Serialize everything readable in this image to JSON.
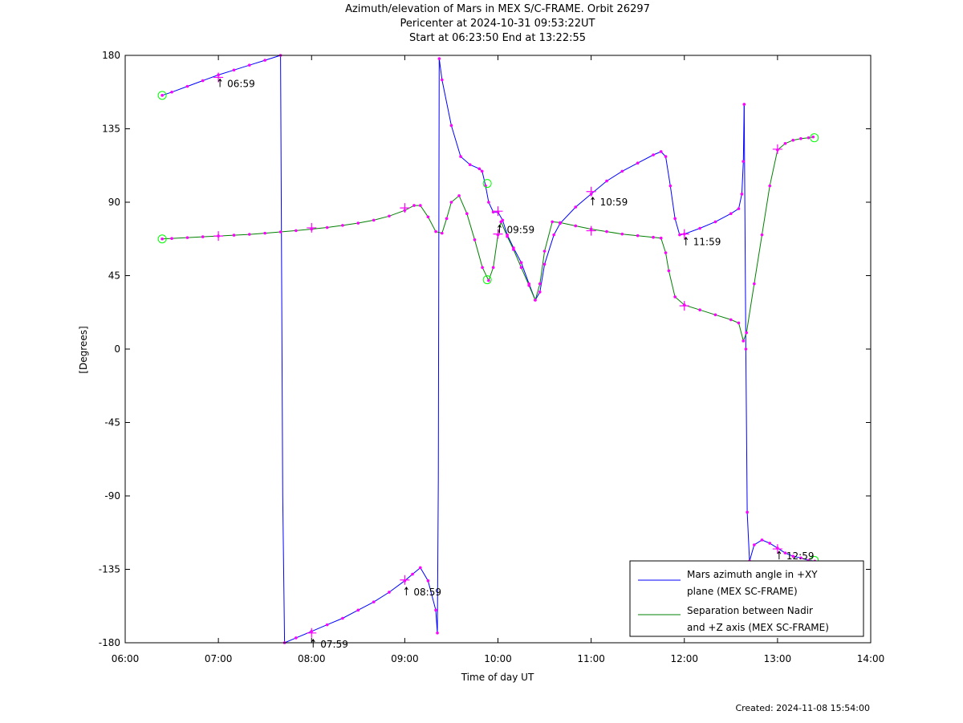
{
  "header": {
    "title": "Azimuth/elevation of Mars in MEX S/C-FRAME.  Orbit 26297",
    "pericenter": "Pericenter at 2024-10-31 09:53:22UT",
    "start_end": "Start at 06:23:50 End at 13:22:55"
  },
  "footer": {
    "created": "Created: 2024-11-08 15:54:00"
  },
  "chart_data": {
    "type": "line",
    "title": "Azimuth/elevation of Mars in MEX S/C-FRAME.  Orbit 26297",
    "xlabel": "Time of day UT",
    "ylabel": "[Degrees]",
    "xlim": [
      6,
      14
    ],
    "ylim": [
      -180,
      180
    ],
    "xticks": [
      6,
      7,
      8,
      9,
      10,
      11,
      12,
      13,
      14
    ],
    "xtick_labels": [
      "06:00",
      "07:00",
      "08:00",
      "09:00",
      "10:00",
      "11:00",
      "12:00",
      "13:00",
      "14:00"
    ],
    "yticks": [
      180,
      135,
      90,
      45,
      0,
      -45,
      -90,
      -135,
      -180
    ],
    "ytick_labels": [
      "180",
      "135",
      "90",
      "45",
      "0",
      "-45",
      "-90",
      "-135",
      "-180"
    ],
    "legend_position": "bottom-right",
    "colors": {
      "azimuth": "#0000ff",
      "separation": "#008000",
      "markers": "#ff00ff",
      "endpoints": "#00ff00"
    },
    "series": [
      {
        "name": "Mars azimuth angle in +XY plane (MEX SC-FRAME)",
        "legend_lines": [
          "Mars azimuth angle in +XY",
          "plane (MEX SC-FRAME)"
        ],
        "color": "#0000ff",
        "segments": [
          [
            [
              6.397,
              155.5
            ],
            [
              6.5,
              157.5
            ],
            [
              6.667,
              161
            ],
            [
              6.833,
              164.5
            ],
            [
              7.0,
              168
            ],
            [
              7.167,
              171
            ],
            [
              7.333,
              174
            ],
            [
              7.5,
              177
            ],
            [
              7.667,
              180
            ]
          ],
          [
            [
              7.667,
              180
            ],
            [
              7.69,
              -90
            ],
            [
              7.71,
              -180
            ]
          ],
          [
            [
              7.71,
              -180
            ],
            [
              7.833,
              -177
            ],
            [
              8.0,
              -173
            ],
            [
              8.167,
              -169
            ],
            [
              8.333,
              -165
            ],
            [
              8.5,
              -160
            ],
            [
              8.667,
              -155
            ],
            [
              8.833,
              -149
            ],
            [
              9.0,
              -142
            ],
            [
              9.083,
              -138
            ],
            [
              9.167,
              -134
            ],
            [
              9.25,
              -142
            ],
            [
              9.333,
              -160
            ],
            [
              9.35,
              -174
            ]
          ],
          [
            [
              9.35,
              -174
            ],
            [
              9.36,
              -80
            ],
            [
              9.37,
              178
            ]
          ],
          [
            [
              9.37,
              178
            ],
            [
              9.4,
              165
            ],
            [
              9.5,
              137
            ],
            [
              9.6,
              118
            ],
            [
              9.7,
              113
            ],
            [
              9.8,
              110.5
            ],
            [
              9.83,
              109
            ],
            [
              9.867,
              100
            ],
            [
              9.9,
              90
            ],
            [
              9.95,
              84
            ],
            [
              10.0,
              84
            ],
            [
              10.05,
              79
            ],
            [
              10.1,
              70
            ],
            [
              10.167,
              62
            ],
            [
              10.25,
              53
            ],
            [
              10.333,
              40
            ],
            [
              10.4,
              30
            ],
            [
              10.45,
              35
            ],
            [
              10.5,
              52
            ],
            [
              10.6,
              70
            ],
            [
              10.667,
              77
            ],
            [
              10.833,
              87
            ],
            [
              11.0,
              95
            ],
            [
              11.167,
              103
            ],
            [
              11.333,
              109
            ],
            [
              11.5,
              114
            ],
            [
              11.667,
              119
            ],
            [
              11.75,
              121
            ],
            [
              11.8,
              118
            ],
            [
              11.85,
              100
            ],
            [
              11.9,
              80
            ],
            [
              11.95,
              70
            ],
            [
              12.0,
              70.5
            ],
            [
              12.167,
              74
            ],
            [
              12.333,
              78
            ],
            [
              12.5,
              83
            ],
            [
              12.583,
              86
            ],
            [
              12.617,
              95
            ],
            [
              12.633,
              115
            ],
            [
              12.642,
              150
            ]
          ],
          [
            [
              12.642,
              150
            ],
            [
              12.66,
              0
            ],
            [
              12.675,
              -100
            ],
            [
              12.7,
              -130
            ]
          ],
          [
            [
              12.7,
              -130
            ],
            [
              12.75,
              -120
            ],
            [
              12.833,
              -117
            ],
            [
              12.917,
              -119
            ],
            [
              13.0,
              -122
            ],
            [
              13.083,
              -125
            ],
            [
              13.167,
              -127
            ],
            [
              13.25,
              -128
            ],
            [
              13.333,
              -129.5
            ],
            [
              13.4,
              -130
            ]
          ]
        ]
      },
      {
        "name": "Separation between Nadir and +Z axis (MEX SC-FRAME)",
        "legend_lines": [
          "Separation between Nadir",
          "and +Z axis (MEX SC-FRAME)"
        ],
        "color": "#008000",
        "segments": [
          [
            [
              6.397,
              67.5
            ],
            [
              6.5,
              67.8
            ],
            [
              6.667,
              68.3
            ],
            [
              6.833,
              68.8
            ],
            [
              7.0,
              69.3
            ],
            [
              7.167,
              69.8
            ],
            [
              7.333,
              70.3
            ],
            [
              7.5,
              71
            ],
            [
              7.667,
              71.8
            ],
            [
              7.833,
              72.6
            ],
            [
              8.0,
              73.5
            ],
            [
              8.167,
              74.5
            ],
            [
              8.333,
              75.8
            ],
            [
              8.5,
              77.2
            ],
            [
              8.667,
              79
            ],
            [
              8.833,
              81.5
            ],
            [
              9.0,
              85
            ],
            [
              9.1,
              88
            ],
            [
              9.167,
              88
            ],
            [
              9.25,
              81
            ],
            [
              9.333,
              72
            ],
            [
              9.4,
              71
            ],
            [
              9.45,
              80
            ],
            [
              9.5,
              90
            ],
            [
              9.583,
              94
            ],
            [
              9.667,
              83
            ],
            [
              9.75,
              67
            ],
            [
              9.833,
              50
            ],
            [
              9.9,
              42
            ],
            [
              9.95,
              50
            ],
            [
              10.0,
              70
            ],
            [
              10.033,
              78
            ],
            [
              10.1,
              69
            ],
            [
              10.167,
              61
            ],
            [
              10.25,
              50
            ],
            [
              10.333,
              39
            ],
            [
              10.4,
              30
            ],
            [
              10.45,
              40
            ],
            [
              10.5,
              60
            ],
            [
              10.583,
              78
            ],
            [
              10.667,
              77.5
            ],
            [
              10.833,
              75.5
            ],
            [
              11.0,
              73.5
            ],
            [
              11.167,
              72
            ],
            [
              11.333,
              70.5
            ],
            [
              11.5,
              69.5
            ],
            [
              11.667,
              68.5
            ],
            [
              11.75,
              68
            ],
            [
              11.8,
              59
            ],
            [
              11.833,
              48
            ],
            [
              11.9,
              32
            ],
            [
              12.0,
              27
            ],
            [
              12.167,
              24
            ],
            [
              12.333,
              21
            ],
            [
              12.5,
              18
            ],
            [
              12.583,
              16
            ],
            [
              12.633,
              5
            ],
            [
              12.667,
              10
            ],
            [
              12.75,
              40
            ],
            [
              12.833,
              70
            ],
            [
              12.917,
              100
            ],
            [
              13.0,
              122
            ],
            [
              13.083,
              126
            ],
            [
              13.167,
              128
            ],
            [
              13.25,
              129
            ],
            [
              13.333,
              129.5
            ],
            [
              13.382,
              130
            ]
          ]
        ]
      }
    ],
    "hourly_labels": [
      {
        "label": "06:59",
        "x": 7.0,
        "y": 165.5
      },
      {
        "label": "07:59",
        "x": 8.0,
        "y": -178
      },
      {
        "label": "08:59",
        "x": 9.0,
        "y": -146
      },
      {
        "label": "09:59",
        "x": 10.0,
        "y": 76
      },
      {
        "label": "10:59",
        "x": 11.0,
        "y": 93
      },
      {
        "label": "11:59",
        "x": 12.0,
        "y": 68.5
      },
      {
        "label": "12:59",
        "x": 13.0,
        "y": -124
      }
    ],
    "hour_crosses": [
      [
        7.0,
        166.5
      ],
      [
        8.0,
        -174
      ],
      [
        9.0,
        -141.5
      ],
      [
        10.0,
        84.5
      ],
      [
        11.0,
        96.5
      ],
      [
        12.0,
        70.5
      ],
      [
        13.0,
        -122.5
      ],
      [
        7.0,
        69.3
      ],
      [
        8.0,
        74.3
      ],
      [
        9.0,
        86.5
      ],
      [
        10.0,
        70.5
      ],
      [
        11.0,
        72.5
      ],
      [
        12.0,
        26.5
      ],
      [
        13.0,
        122.5
      ]
    ],
    "endpoint_circles": [
      [
        6.397,
        155.5
      ],
      [
        9.885,
        101.5
      ],
      [
        13.395,
        129.5
      ],
      [
        6.397,
        67.5
      ],
      [
        9.885,
        42.5
      ],
      [
        13.395,
        -129.5
      ]
    ]
  }
}
